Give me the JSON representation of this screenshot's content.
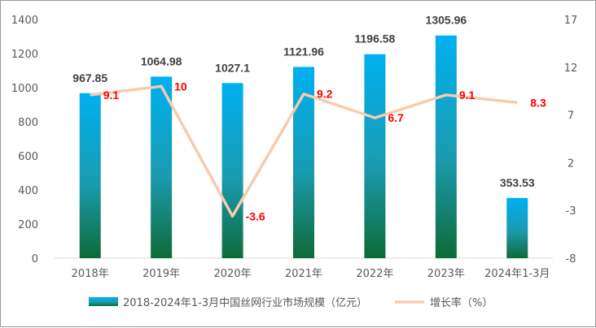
{
  "chart_data": {
    "type": "bar",
    "categories": [
      "2018年",
      "2019年",
      "2020年",
      "2021年",
      "2022年",
      "2023年",
      "2024年1-3月"
    ],
    "series": [
      {
        "name": "2018-2024年1-3月中国丝网行业市场规模（亿元）",
        "type": "bar",
        "axis": "left",
        "values": [
          967.85,
          1064.98,
          1027.1,
          1121.96,
          1196.58,
          1305.96,
          353.53
        ],
        "labels": [
          "967.85",
          "1064.98",
          "1027.1",
          "1121.96",
          "1196.58",
          "1305.96",
          "353.53"
        ]
      },
      {
        "name": "增长率（%）",
        "type": "line",
        "axis": "right",
        "values": [
          9.1,
          10,
          -3.6,
          9.2,
          6.7,
          9.1,
          8.3
        ],
        "labels": [
          "9.1",
          "10",
          "-3.6",
          "9.2",
          "6.7",
          "9.1",
          "8.3"
        ]
      }
    ],
    "y_left": {
      "range": [
        0,
        1400
      ],
      "ticks": [
        "0",
        "200",
        "400",
        "600",
        "800",
        "1000",
        "1200",
        "1400"
      ]
    },
    "y_right": {
      "range": [
        -8,
        17
      ],
      "ticks": [
        "-8",
        "-3",
        "2",
        "7",
        "12",
        "17"
      ]
    },
    "grid": false,
    "legend": "bottom",
    "colors": {
      "bar_top": "#00b0f0",
      "bar_mid": "#1a9bb0",
      "bar_bottom": "#0e6b38",
      "line": "#f8cbad",
      "growth_label": "#ff0000",
      "value_label": "#404040",
      "axis_text": "#595959",
      "axis_line": "#d9d9d9"
    }
  }
}
